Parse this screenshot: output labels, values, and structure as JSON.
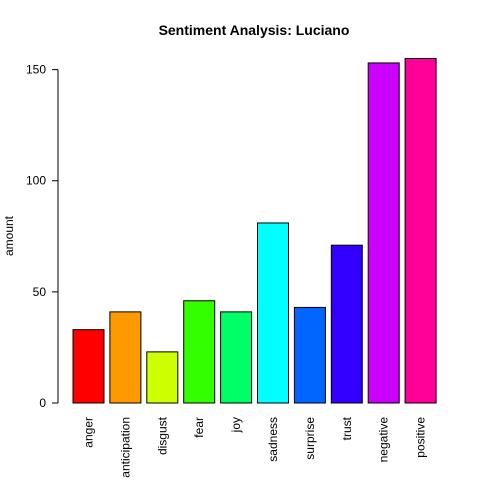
{
  "chart_data": {
    "type": "bar",
    "title": "Sentiment Analysis: Luciano",
    "xlabel": "",
    "ylabel": "amount",
    "categories": [
      "anger",
      "anticipation",
      "disgust",
      "fear",
      "joy",
      "sadness",
      "surprise",
      "trust",
      "negative",
      "positive"
    ],
    "values": [
      33,
      41,
      23,
      46,
      41,
      81,
      43,
      71,
      153,
      155
    ],
    "colors": [
      "#FF0000",
      "#FF9900",
      "#CCFF00",
      "#33FF00",
      "#00FF66",
      "#00FFFF",
      "#0066FF",
      "#3300FF",
      "#CC00FF",
      "#FF0099"
    ],
    "yticks": [
      0,
      50,
      100,
      150
    ],
    "ylim": [
      0,
      155
    ],
    "grid": false,
    "legend": "none"
  }
}
